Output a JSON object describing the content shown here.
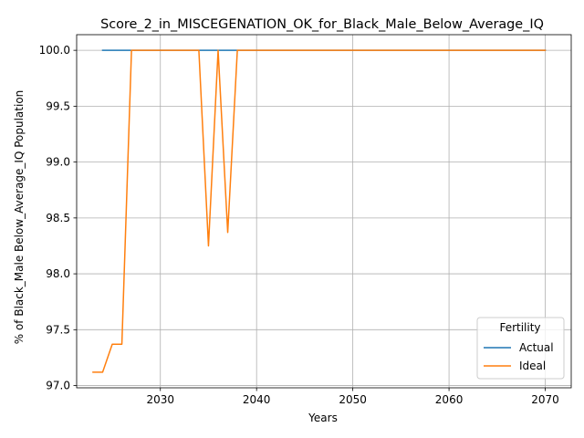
{
  "chart_data": {
    "type": "line",
    "title": "Score_2_in_MISCEGENATION_OK_for_Black_Male_Below_Average_IQ",
    "xlabel": "Years",
    "ylabel": "% of Black_Male Below_Average_IQ Population",
    "xlim": [
      2021.3,
      2072.7
    ],
    "ylim": [
      96.98,
      100.14
    ],
    "xticks": [
      2030,
      2040,
      2050,
      2060,
      2070
    ],
    "yticks": [
      97.0,
      97.5,
      98.0,
      98.5,
      99.0,
      99.5,
      100.0
    ],
    "ytick_labels": [
      "97.0",
      "97.5",
      "98.0",
      "98.5",
      "99.0",
      "99.5",
      "100.0"
    ],
    "grid": true,
    "legend": {
      "title": "Fertility",
      "placement": "lower right"
    },
    "series": [
      {
        "name": "Actual",
        "color": "#1f77b4",
        "x": [
          2024,
          2070
        ],
        "y": [
          100.0,
          100.0
        ]
      },
      {
        "name": "Ideal",
        "color": "#ff7f0e",
        "x": [
          2023,
          2024,
          2025,
          2026,
          2027,
          2028,
          2034,
          2035,
          2036,
          2037,
          2038,
          2039,
          2070
        ],
        "y": [
          97.12,
          97.12,
          97.37,
          97.37,
          100.0,
          100.0,
          100.0,
          98.25,
          100.0,
          98.37,
          100.0,
          100.0,
          100.0
        ]
      }
    ]
  }
}
